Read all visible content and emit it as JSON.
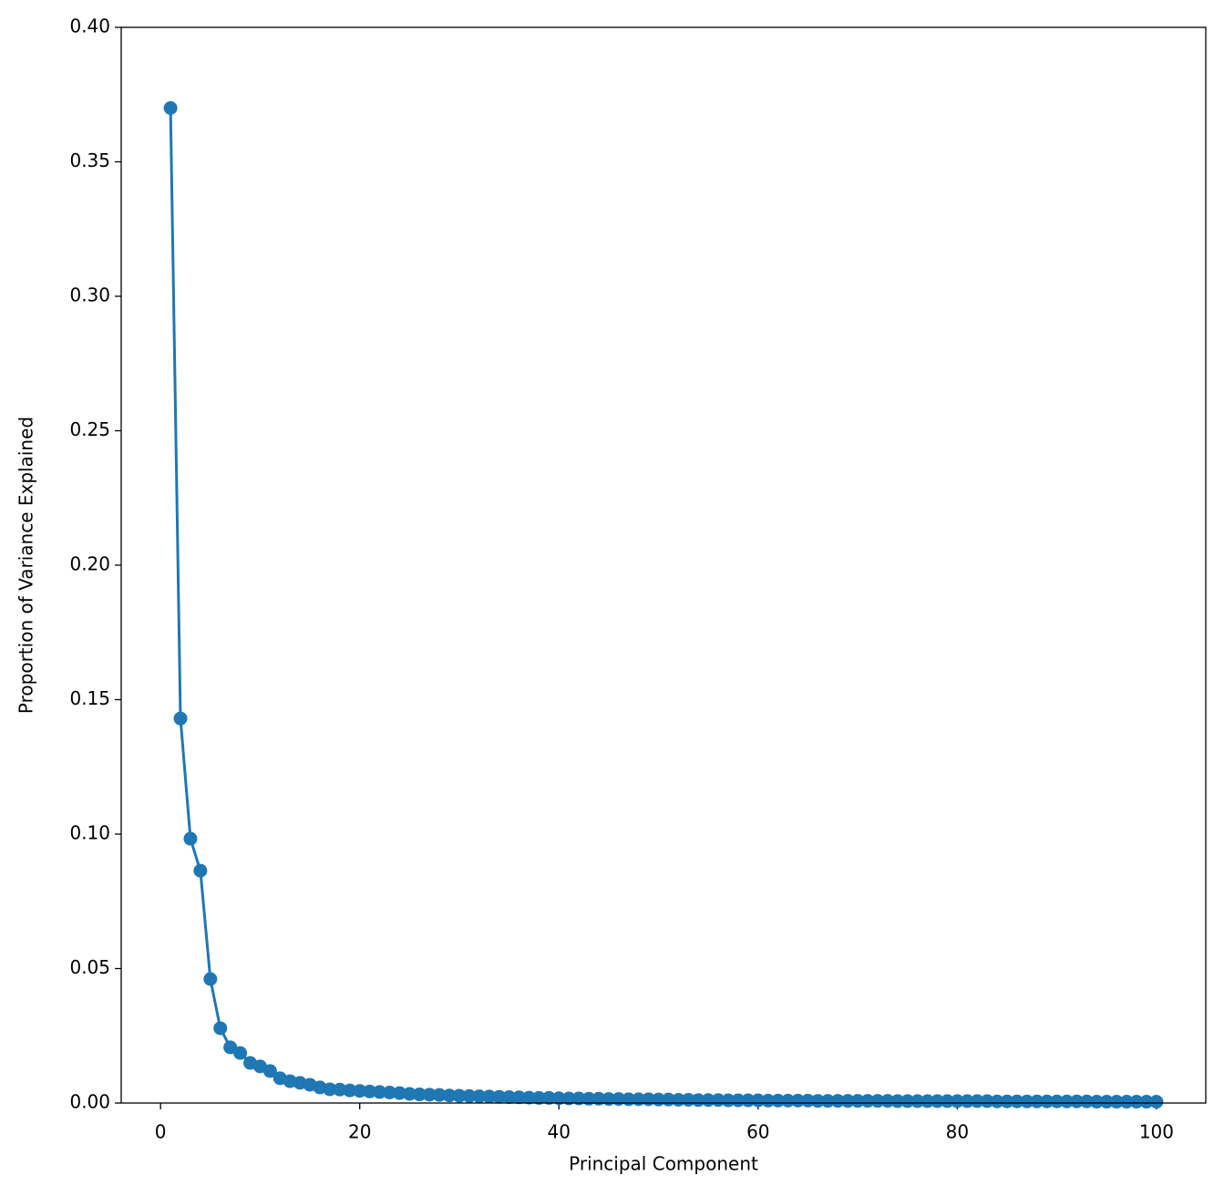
{
  "chart_data": {
    "type": "line",
    "xlabel": "Principal Component",
    "ylabel": "Proportion of Variance Explained",
    "color": "#1f77b4",
    "x": [
      1,
      2,
      3,
      4,
      5,
      6,
      7,
      8,
      9,
      10,
      11,
      12,
      13,
      14,
      15,
      16,
      17,
      18,
      19,
      20,
      21,
      22,
      23,
      24,
      25,
      26,
      27,
      28,
      29,
      30,
      31,
      32,
      33,
      34,
      35,
      36,
      37,
      38,
      39,
      40,
      41,
      42,
      43,
      44,
      45,
      46,
      47,
      48,
      49,
      50,
      51,
      52,
      53,
      54,
      55,
      56,
      57,
      58,
      59,
      60,
      61,
      62,
      63,
      64,
      65,
      66,
      67,
      68,
      69,
      70,
      71,
      72,
      73,
      74,
      75,
      76,
      77,
      78,
      79,
      80,
      81,
      82,
      83,
      84,
      85,
      86,
      87,
      88,
      89,
      90,
      91,
      92,
      93,
      94,
      95,
      96,
      97,
      98,
      99,
      100
    ],
    "values": [
      0.37,
      0.143,
      0.0983,
      0.0864,
      0.0461,
      0.0278,
      0.0207,
      0.0186,
      0.0149,
      0.0136,
      0.0119,
      0.0092,
      0.0081,
      0.0075,
      0.0068,
      0.0058,
      0.0051,
      0.005,
      0.0047,
      0.0045,
      0.0043,
      0.0041,
      0.0039,
      0.0037,
      0.0034,
      0.0032,
      0.0031,
      0.003,
      0.0028,
      0.0027,
      0.0026,
      0.0025,
      0.0024,
      0.0023,
      0.0022,
      0.0021,
      0.002,
      0.0019,
      0.0019,
      0.0018,
      0.0017,
      0.0017,
      0.0016,
      0.0016,
      0.0015,
      0.0015,
      0.0014,
      0.0014,
      0.0014,
      0.0013,
      0.0013,
      0.0012,
      0.0012,
      0.0011,
      0.0011,
      0.0011,
      0.001,
      0.001,
      0.001,
      0.001,
      0.0009,
      0.0009,
      0.0009,
      0.0009,
      0.0009,
      0.0008,
      0.0008,
      0.0008,
      0.0008,
      0.0008,
      0.0008,
      0.0008,
      0.0008,
      0.0007,
      0.0007,
      0.0007,
      0.0007,
      0.0007,
      0.0007,
      0.0007,
      0.0007,
      0.0007,
      0.0007,
      0.0006,
      0.0006,
      0.0006,
      0.0006,
      0.0006,
      0.0006,
      0.0006,
      0.0006,
      0.0006,
      0.0006,
      0.0005,
      0.0005,
      0.0005,
      0.0005,
      0.0005,
      0.0005,
      0.0005
    ],
    "xlim": [
      -3.95,
      104.95
    ],
    "ylim": [
      0,
      0.4
    ],
    "xticks": [
      0,
      20,
      40,
      60,
      80,
      100
    ],
    "yticks": [
      {
        "value": 0,
        "label": "0.00"
      },
      {
        "value": 0.05,
        "label": "0.05"
      },
      {
        "value": 0.1,
        "label": "0.10"
      },
      {
        "value": 0.15,
        "label": "0.15"
      },
      {
        "value": 0.2,
        "label": "0.20"
      },
      {
        "value": 0.25,
        "label": "0.25"
      },
      {
        "value": 0.3,
        "label": "0.30"
      },
      {
        "value": 0.35,
        "label": "0.35"
      },
      {
        "value": 0.4,
        "label": "0.40"
      }
    ]
  }
}
